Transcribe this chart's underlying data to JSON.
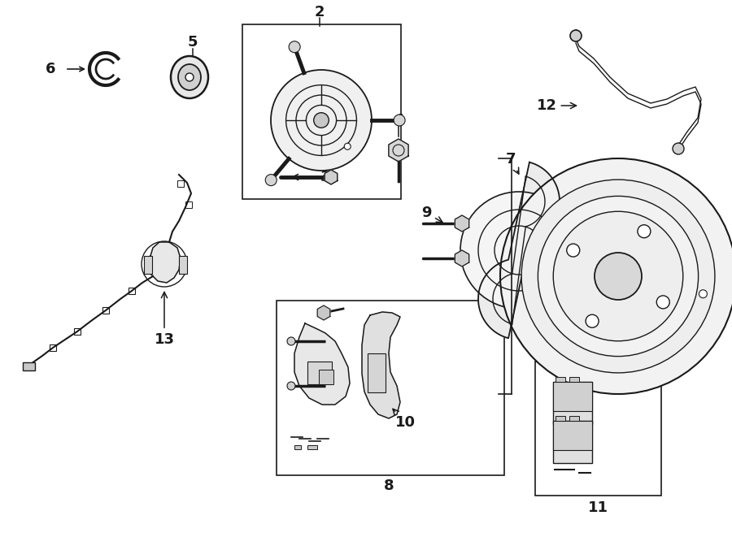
{
  "background_color": "#ffffff",
  "line_color": "#1a1a1a",
  "figure_width": 9.0,
  "figure_height": 6.61,
  "dpi": 100
}
